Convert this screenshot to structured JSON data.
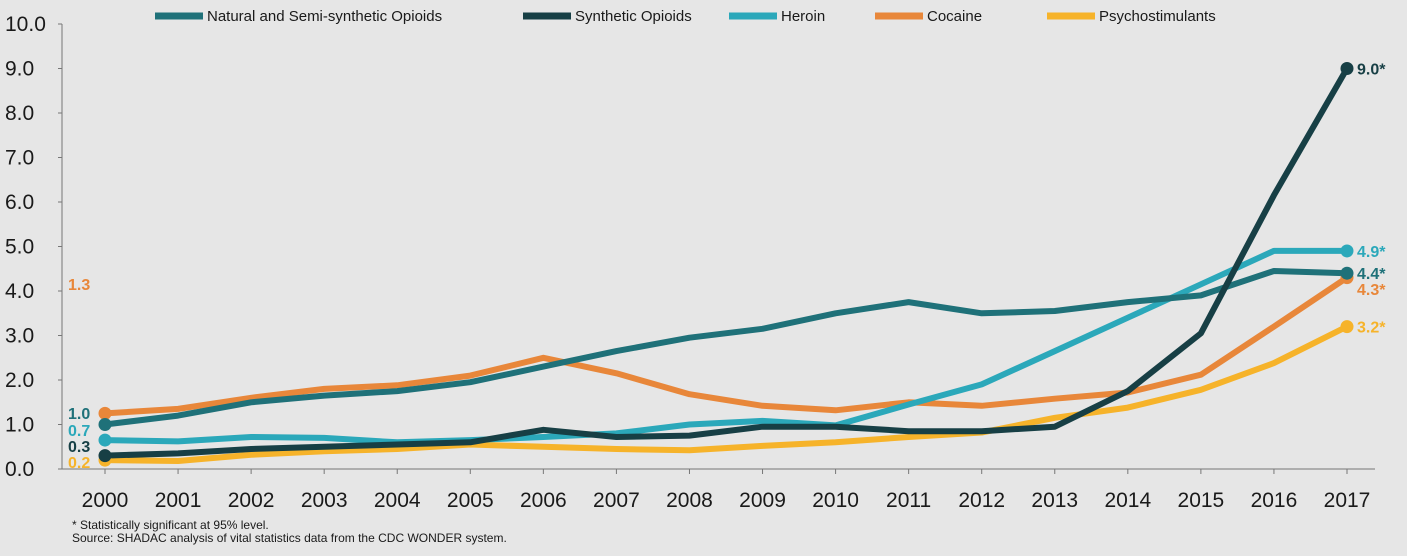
{
  "chart_data": {
    "type": "line",
    "categories": [
      "2000",
      "2001",
      "2002",
      "2003",
      "2004",
      "2005",
      "2006",
      "2007",
      "2008",
      "2009",
      "2010",
      "2011",
      "2012",
      "2013",
      "2014",
      "2015",
      "2016",
      "2017"
    ],
    "ylim": [
      0,
      10
    ],
    "yticks": [
      "0.0",
      "1.0",
      "2.0",
      "3.0",
      "4.0",
      "5.0",
      "6.0",
      "7.0",
      "8.0",
      "9.0",
      "10.0"
    ],
    "grid": false,
    "legend_position": "top",
    "series": [
      {
        "name": "Natural and Semi-synthetic Opioids",
        "color": "#1f7179",
        "values": [
          1.0,
          1.2,
          1.5,
          1.65,
          1.75,
          1.95,
          2.3,
          2.65,
          2.95,
          3.15,
          3.5,
          3.75,
          3.5,
          3.55,
          3.75,
          3.9,
          4.45,
          4.4
        ],
        "start_label": "1.0",
        "end_label": "4.4*"
      },
      {
        "name": "Synthetic Opioids",
        "color": "#173f45",
        "values": [
          0.3,
          0.35,
          0.45,
          0.5,
          0.55,
          0.6,
          0.88,
          0.72,
          0.75,
          0.95,
          0.95,
          0.85,
          0.85,
          0.95,
          1.75,
          3.05,
          6.15,
          9.0
        ],
        "start_label": "0.3",
        "end_label": "9.0*"
      },
      {
        "name": "Heroin",
        "color": "#2ba8ba",
        "values": [
          0.65,
          0.62,
          0.72,
          0.7,
          0.6,
          0.65,
          0.72,
          0.8,
          1.0,
          1.08,
          0.98,
          1.45,
          1.9,
          2.65,
          3.4,
          4.15,
          4.9,
          4.9
        ],
        "start_label": "0.7",
        "end_label": "4.9*"
      },
      {
        "name": "Cocaine",
        "color": "#e8873a",
        "values": [
          1.25,
          1.35,
          1.6,
          1.8,
          1.88,
          2.1,
          2.5,
          2.15,
          1.68,
          1.42,
          1.32,
          1.5,
          1.42,
          1.58,
          1.72,
          2.12,
          3.2,
          4.3
        ],
        "start_label": "1.3",
        "end_label": "4.3*"
      },
      {
        "name": "Psychostimulants",
        "color": "#f6b32a",
        "values": [
          0.2,
          0.18,
          0.32,
          0.4,
          0.45,
          0.55,
          0.5,
          0.45,
          0.42,
          0.52,
          0.6,
          0.72,
          0.82,
          1.15,
          1.38,
          1.78,
          2.38,
          3.2
        ],
        "start_label": "0.2",
        "end_label": "3.2*"
      }
    ]
  },
  "footnotes": {
    "significance": "* Statistically significant at 95% level.",
    "source": "Source: SHADAC analysis of vital statistics data from the CDC WONDER system."
  }
}
